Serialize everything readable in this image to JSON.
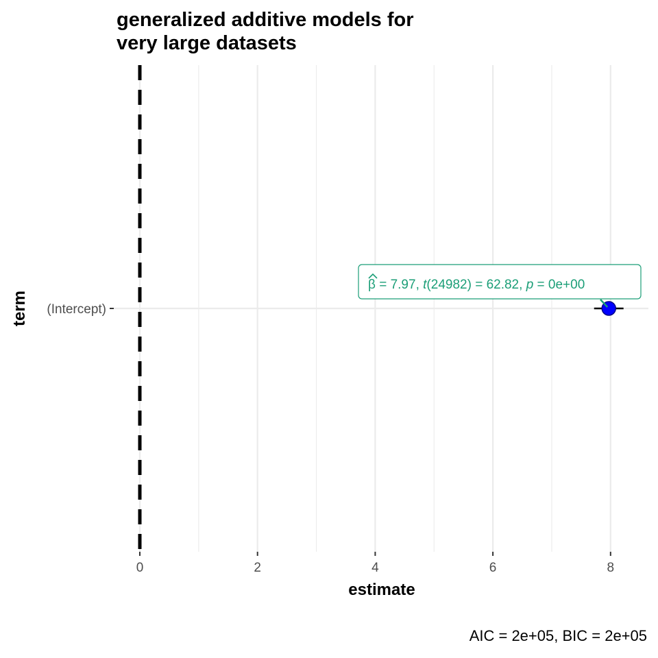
{
  "chart_data": {
    "type": "scatter",
    "title_lines": [
      "generalized additive models for",
      "very large datasets"
    ],
    "xlabel": "estimate",
    "ylabel": "term",
    "xlim": [
      0,
      8.6
    ],
    "x_major_ticks": [
      0,
      2,
      4,
      6,
      8
    ],
    "x_tick_labels": [
      "0",
      "2",
      "4",
      "6",
      "8"
    ],
    "x_minor_gridlines": [
      1,
      3,
      5,
      7
    ],
    "grid": true,
    "reference_line": {
      "x": 0,
      "style": "dashed"
    },
    "terms": [
      "(Intercept)"
    ],
    "points": [
      {
        "term": "(Intercept)",
        "estimate": 7.97,
        "conf_low": 7.72,
        "conf_high": 8.22
      }
    ],
    "annotation": {
      "beta_symbol": "β",
      "beta_value": "= 7.97,",
      "t_symbol": "t",
      "df": "(24982)",
      "t_value": "= 62.82,",
      "p_symbol": "p",
      "p_value": "= 0e+00"
    },
    "caption": "AIC = 2e+05, BIC = 2e+05",
    "colors": {
      "point": "#0000ff",
      "point_outline": "#00008b",
      "label": "#1b9e77",
      "reference_line": "#000000",
      "grid": "#ebebeb",
      "errorbar": "#000000"
    }
  }
}
